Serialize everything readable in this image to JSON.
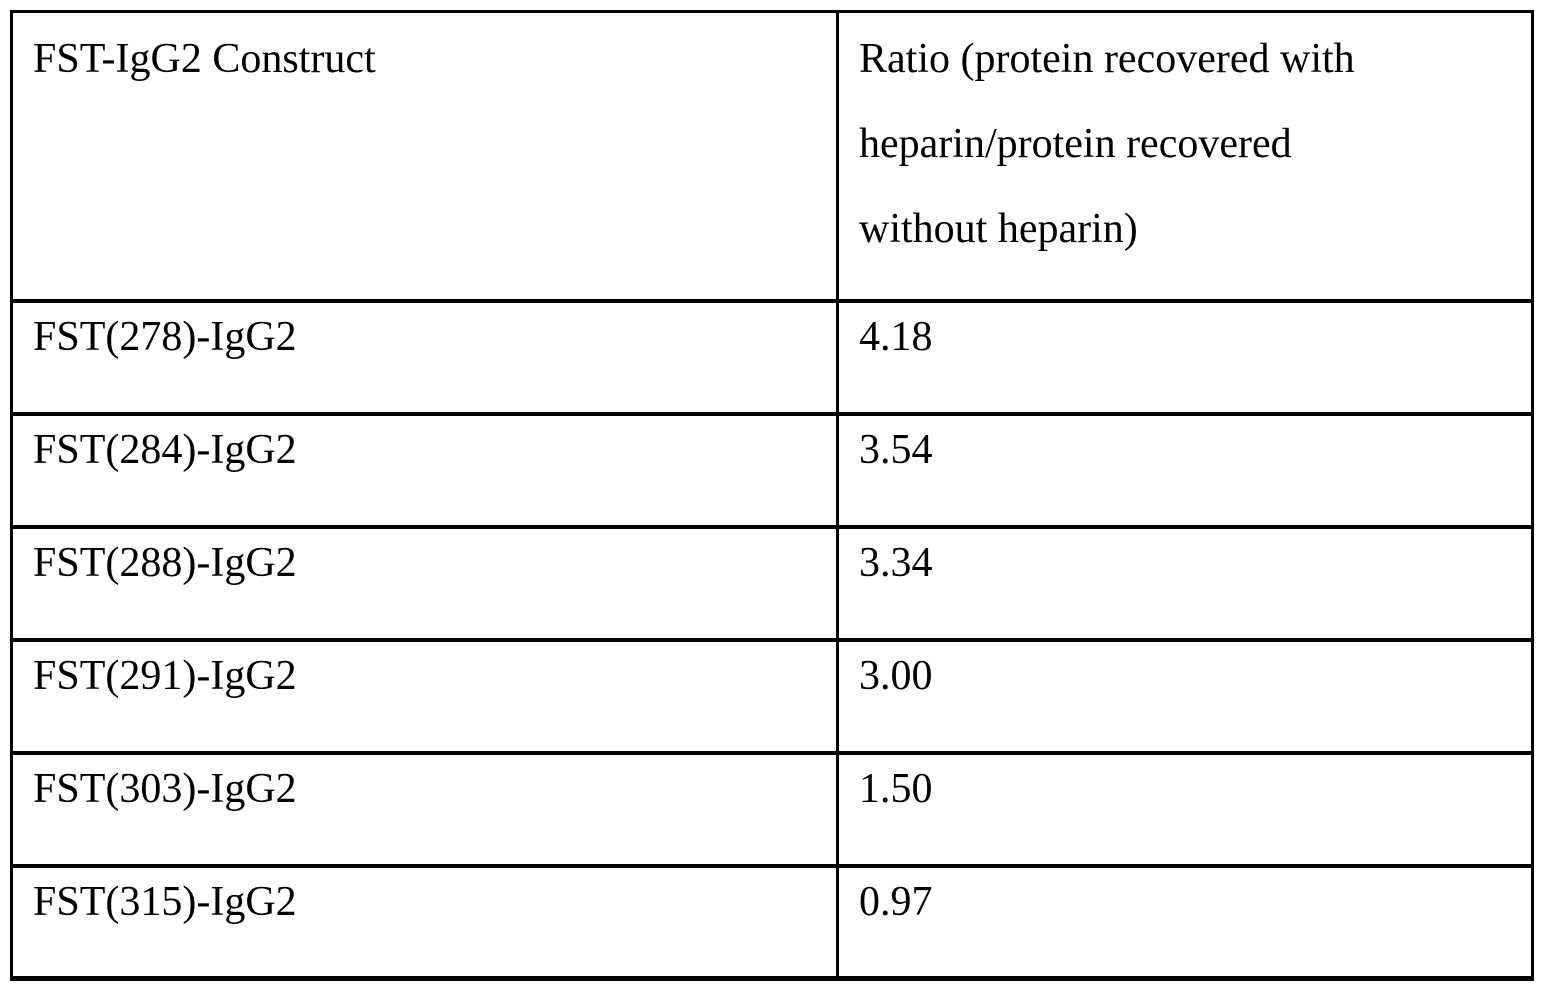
{
  "table": {
    "headers": {
      "construct": "FST-IgG2 Construct",
      "ratio_full": "Ratio (protein recovered with heparin/protein recovered without heparin)",
      "ratio_lines": [
        "Ratio (protein recovered with",
        "heparin/protein recovered",
        "without heparin)"
      ]
    },
    "rows": [
      {
        "construct": "FST(278)-IgG2",
        "ratio": "4.18"
      },
      {
        "construct": "FST(284)-IgG2",
        "ratio": "3.54"
      },
      {
        "construct": "FST(288)-IgG2",
        "ratio": "3.34"
      },
      {
        "construct": "FST(291)-IgG2",
        "ratio": "3.00"
      },
      {
        "construct": "FST(303)-IgG2",
        "ratio": "1.50"
      },
      {
        "construct": "FST(315)-IgG2",
        "ratio": "0.97"
      }
    ]
  },
  "colors": {
    "text": "#000000",
    "border": "#000000",
    "background": "#ffffff"
  },
  "chart_data": {
    "type": "table",
    "columns": [
      "FST-IgG2 Construct",
      "Ratio (protein recovered with heparin/protein recovered without heparin)"
    ],
    "rows": [
      [
        "FST(278)-IgG2",
        4.18
      ],
      [
        "FST(284)-IgG2",
        3.54
      ],
      [
        "FST(288)-IgG2",
        3.34
      ],
      [
        "FST(291)-IgG2",
        3.0
      ],
      [
        "FST(303)-IgG2",
        1.5
      ],
      [
        "FST(315)-IgG2",
        0.97
      ]
    ]
  }
}
